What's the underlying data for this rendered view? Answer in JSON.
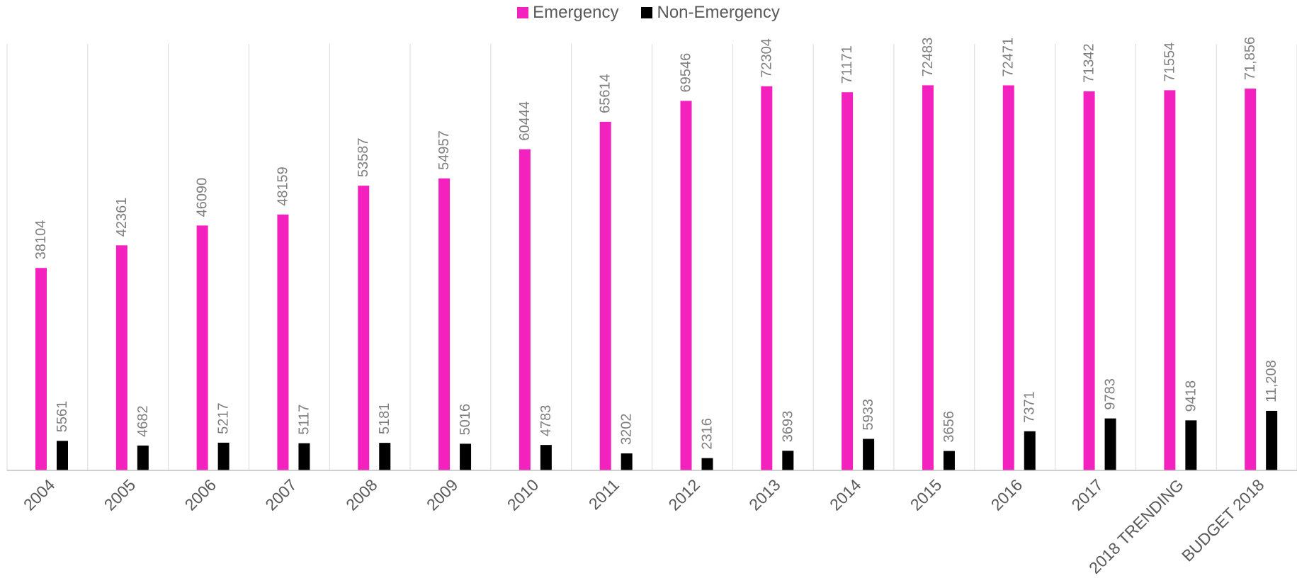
{
  "chart_data": {
    "type": "bar",
    "title": "",
    "xlabel": "",
    "ylabel": "",
    "categories": [
      "2004",
      "2005",
      "2006",
      "2007",
      "2008",
      "2009",
      "2010",
      "2011",
      "2012",
      "2013",
      "2014",
      "2015",
      "2016",
      "2017",
      "2018 TRENDING",
      "BUDGET 2018"
    ],
    "series": [
      {
        "name": "Emergency",
        "color": "#f321be",
        "values": [
          38104,
          42361,
          46090,
          48159,
          53587,
          54957,
          60444,
          65614,
          69546,
          72304,
          71171,
          72483,
          72471,
          71342,
          71554,
          71856
        ],
        "labels": [
          "38104",
          "42361",
          "46090",
          "48159",
          "53587",
          "54957",
          "60444",
          "65614",
          "69546",
          "72304",
          "71171",
          "72483",
          "72471",
          "71342",
          "71554",
          "71,856"
        ]
      },
      {
        "name": "Non-Emergency",
        "color": "#000000",
        "values": [
          5561,
          4682,
          5217,
          5117,
          5181,
          5016,
          4783,
          3202,
          2316,
          3693,
          5933,
          3656,
          7371,
          9783,
          9418,
          11208
        ],
        "labels": [
          "5561",
          "4682",
          "5217",
          "5117",
          "5181",
          "5016",
          "4783",
          "3202",
          "2316",
          "3693",
          "5933",
          "3656",
          "7371",
          "9783",
          "9418",
          "11,208"
        ]
      }
    ],
    "ylim": [
      0,
      80000
    ],
    "grid": "vertical category separators",
    "legend": "top-center",
    "data_labels": true,
    "axis_color": "#bfbfbf",
    "text_color": "#595959",
    "label_color": "#7f7f7f"
  }
}
